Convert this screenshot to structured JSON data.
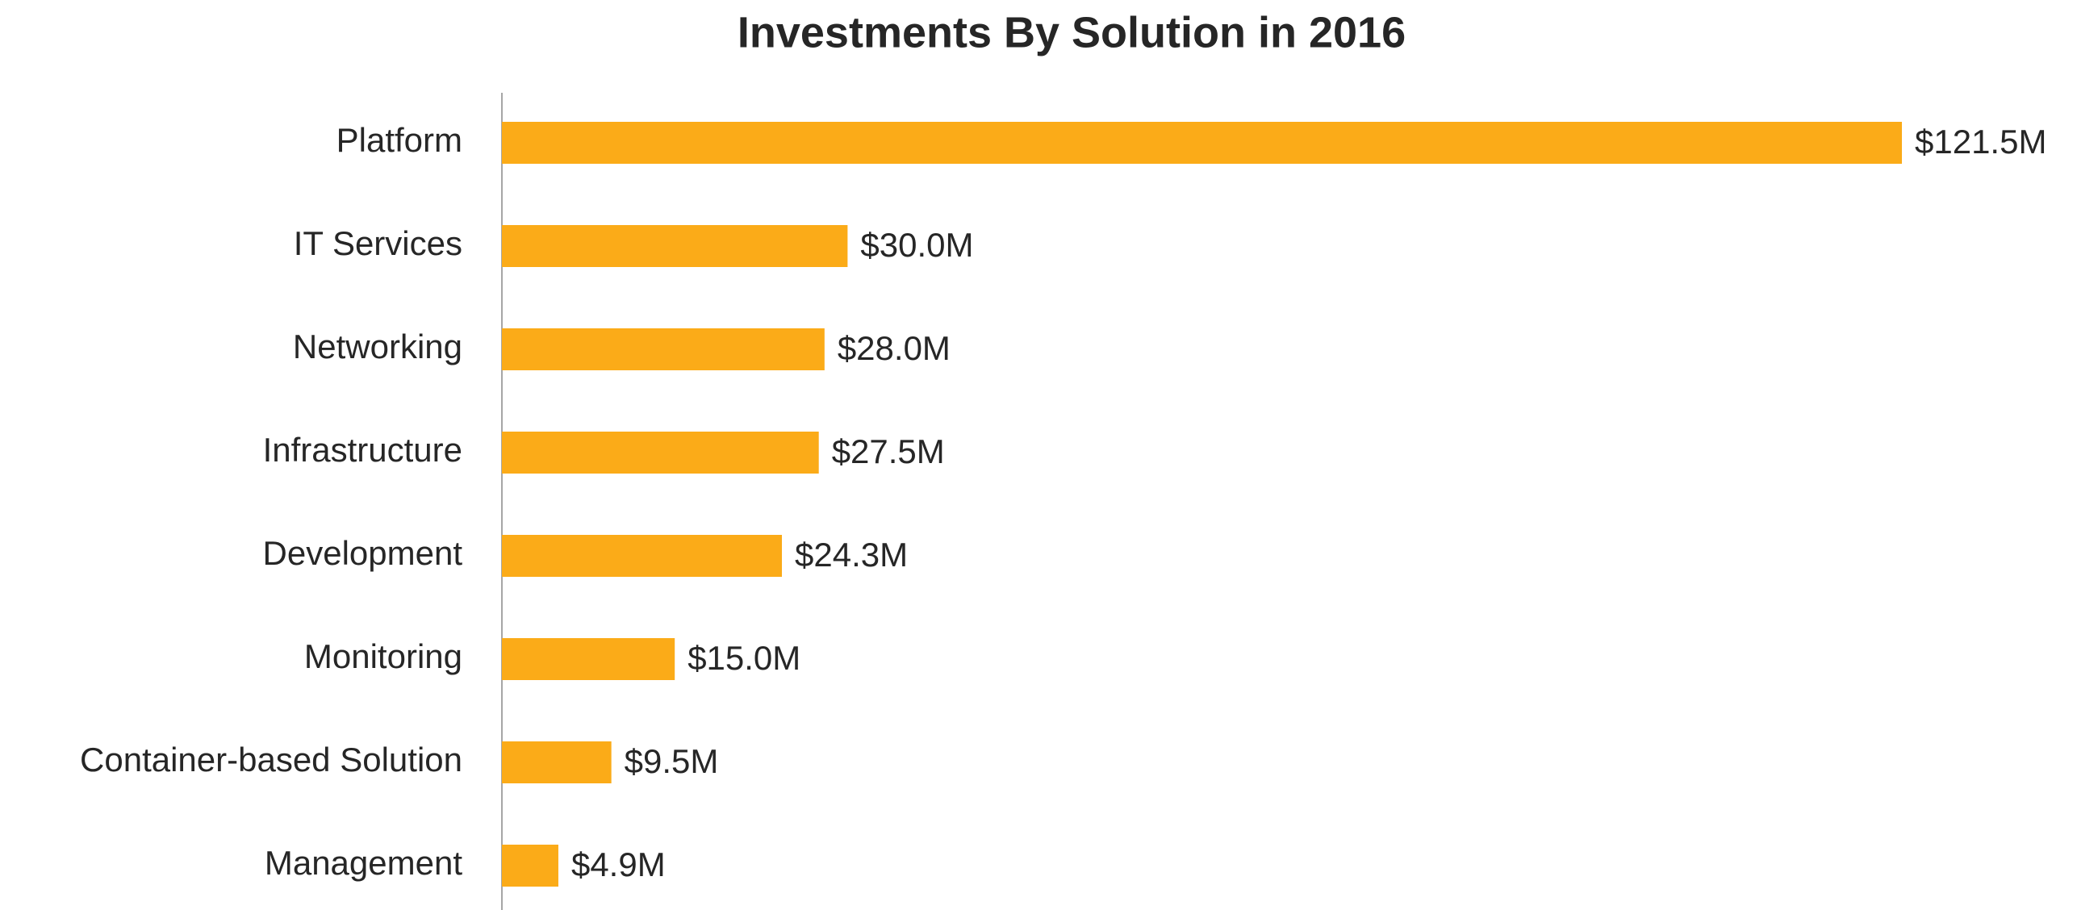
{
  "chart_data": {
    "type": "bar",
    "orientation": "horizontal",
    "title": "Investments By Solution in 2016",
    "categories": [
      "Platform",
      "IT Services",
      "Networking",
      "Infrastructure",
      "Development",
      "Monitoring",
      "Container-based Solution",
      "Management"
    ],
    "values": [
      121.5,
      30.0,
      28.0,
      27.5,
      24.3,
      15.0,
      9.5,
      4.9
    ],
    "value_labels": [
      "$121.5M",
      "$30.0M",
      "$28.0M",
      "$27.5M",
      "$24.3M",
      "$15.0M",
      "$9.5M",
      "$4.9M"
    ],
    "color": "#fbab18"
  }
}
